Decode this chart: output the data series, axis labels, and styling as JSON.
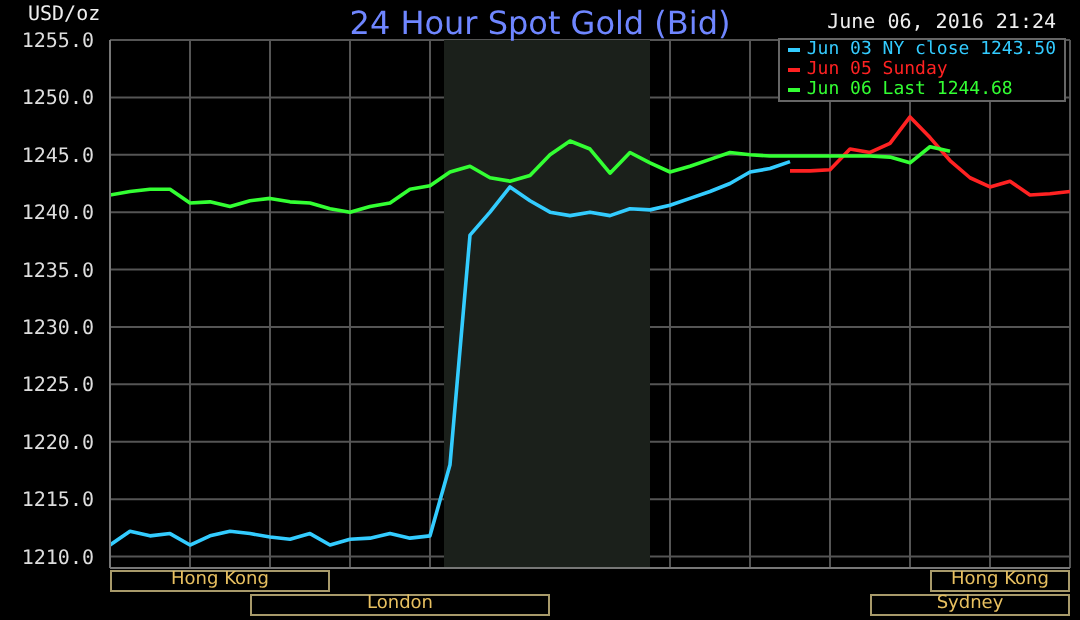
{
  "chart_data": {
    "type": "line",
    "title": "24 Hour Spot Gold (Bid)",
    "subtitle": "June 06, 2016 21:24",
    "ylabel": "USD/oz",
    "categories": [
      null,
      null,
      null,
      null,
      null,
      null,
      null,
      null,
      null,
      null,
      null,
      null,
      null,
      null,
      null,
      null,
      null,
      null,
      null,
      null,
      null,
      null,
      null,
      null,
      null,
      null,
      null,
      null,
      null,
      null,
      null,
      null,
      null,
      null,
      null,
      null,
      null,
      null,
      null,
      null,
      null,
      null,
      null,
      null,
      null,
      null,
      null,
      null,
      null
    ],
    "series": [
      {
        "name": "Jun 03 NY close 1243.50",
        "color": "#33ccff",
        "values": [
          1211,
          1212.2,
          1211.8,
          1212,
          1211,
          1211.8,
          1212.2,
          1212,
          1211.7,
          1211.5,
          1212,
          1211,
          1211.5,
          1211.6,
          1212,
          1211.6,
          1211.8,
          1218,
          1238,
          1240,
          1242.2,
          1241,
          1240,
          1239.7,
          1240,
          1239.7,
          1240.3,
          1240.2,
          1240.6,
          1241.2,
          1241.8,
          1242.5,
          1243.5,
          1243.8,
          1244.4,
          null,
          null,
          null,
          null,
          null,
          null,
          null,
          null,
          null,
          null,
          null,
          null,
          null,
          null
        ]
      },
      {
        "name": "Jun 05 Sunday",
        "color": "#ff2222",
        "values": [
          null,
          null,
          null,
          null,
          null,
          null,
          null,
          null,
          null,
          null,
          null,
          null,
          null,
          null,
          null,
          null,
          null,
          null,
          null,
          null,
          null,
          null,
          null,
          null,
          null,
          null,
          null,
          null,
          null,
          null,
          null,
          null,
          null,
          null,
          1243.6,
          1243.6,
          1243.7,
          1245.5,
          1245.2,
          1246,
          1248.3,
          1246.5,
          1244.5,
          1243,
          1242.2,
          1242.7,
          1241.5,
          1241.6,
          1241.8
        ]
      },
      {
        "name": "Jun 06 Last 1244.68",
        "color": "#33ff33",
        "values": [
          1241.5,
          1241.8,
          1242,
          1242,
          1240.8,
          1240.9,
          1240.5,
          1241,
          1241.2,
          1240.9,
          1240.8,
          1240.3,
          1240,
          1240.5,
          1240.8,
          1242,
          1242.3,
          1243.5,
          1244,
          1243,
          1242.7,
          1243.2,
          1245,
          1246.2,
          1245.5,
          1243.4,
          1245.2,
          1244.3,
          1243.5,
          1244,
          1244.6,
          1245.2,
          1245,
          1244.9,
          1244.9,
          1244.9,
          1244.9,
          1244.9,
          1244.9,
          1244.8,
          1244.3,
          1245.7,
          1245.3,
          null,
          null,
          null,
          null,
          null,
          null
        ]
      }
    ],
    "ylim": [
      1209,
      1255
    ],
    "yticks": [
      {
        "value": 1210,
        "label": "1210.0"
      },
      {
        "value": 1215,
        "label": "1215.0"
      },
      {
        "value": 1220,
        "label": "1220.0"
      },
      {
        "value": 1225,
        "label": "1225.0"
      },
      {
        "value": 1230,
        "label": "1230.0"
      },
      {
        "value": 1235,
        "label": "1235.0"
      },
      {
        "value": 1240,
        "label": "1240.0"
      },
      {
        "value": 1245,
        "label": "1245.0"
      },
      {
        "value": 1250,
        "label": "1250.0"
      },
      {
        "value": 1255,
        "label": "1255.0"
      }
    ],
    "tick_labels": "y",
    "grid": true,
    "legend": "top right",
    "marker": "none",
    "line_style": "solid",
    "annotations": [
      "Hong Kong",
      "London",
      "Sydney",
      "Hong Kong"
    ]
  }
}
